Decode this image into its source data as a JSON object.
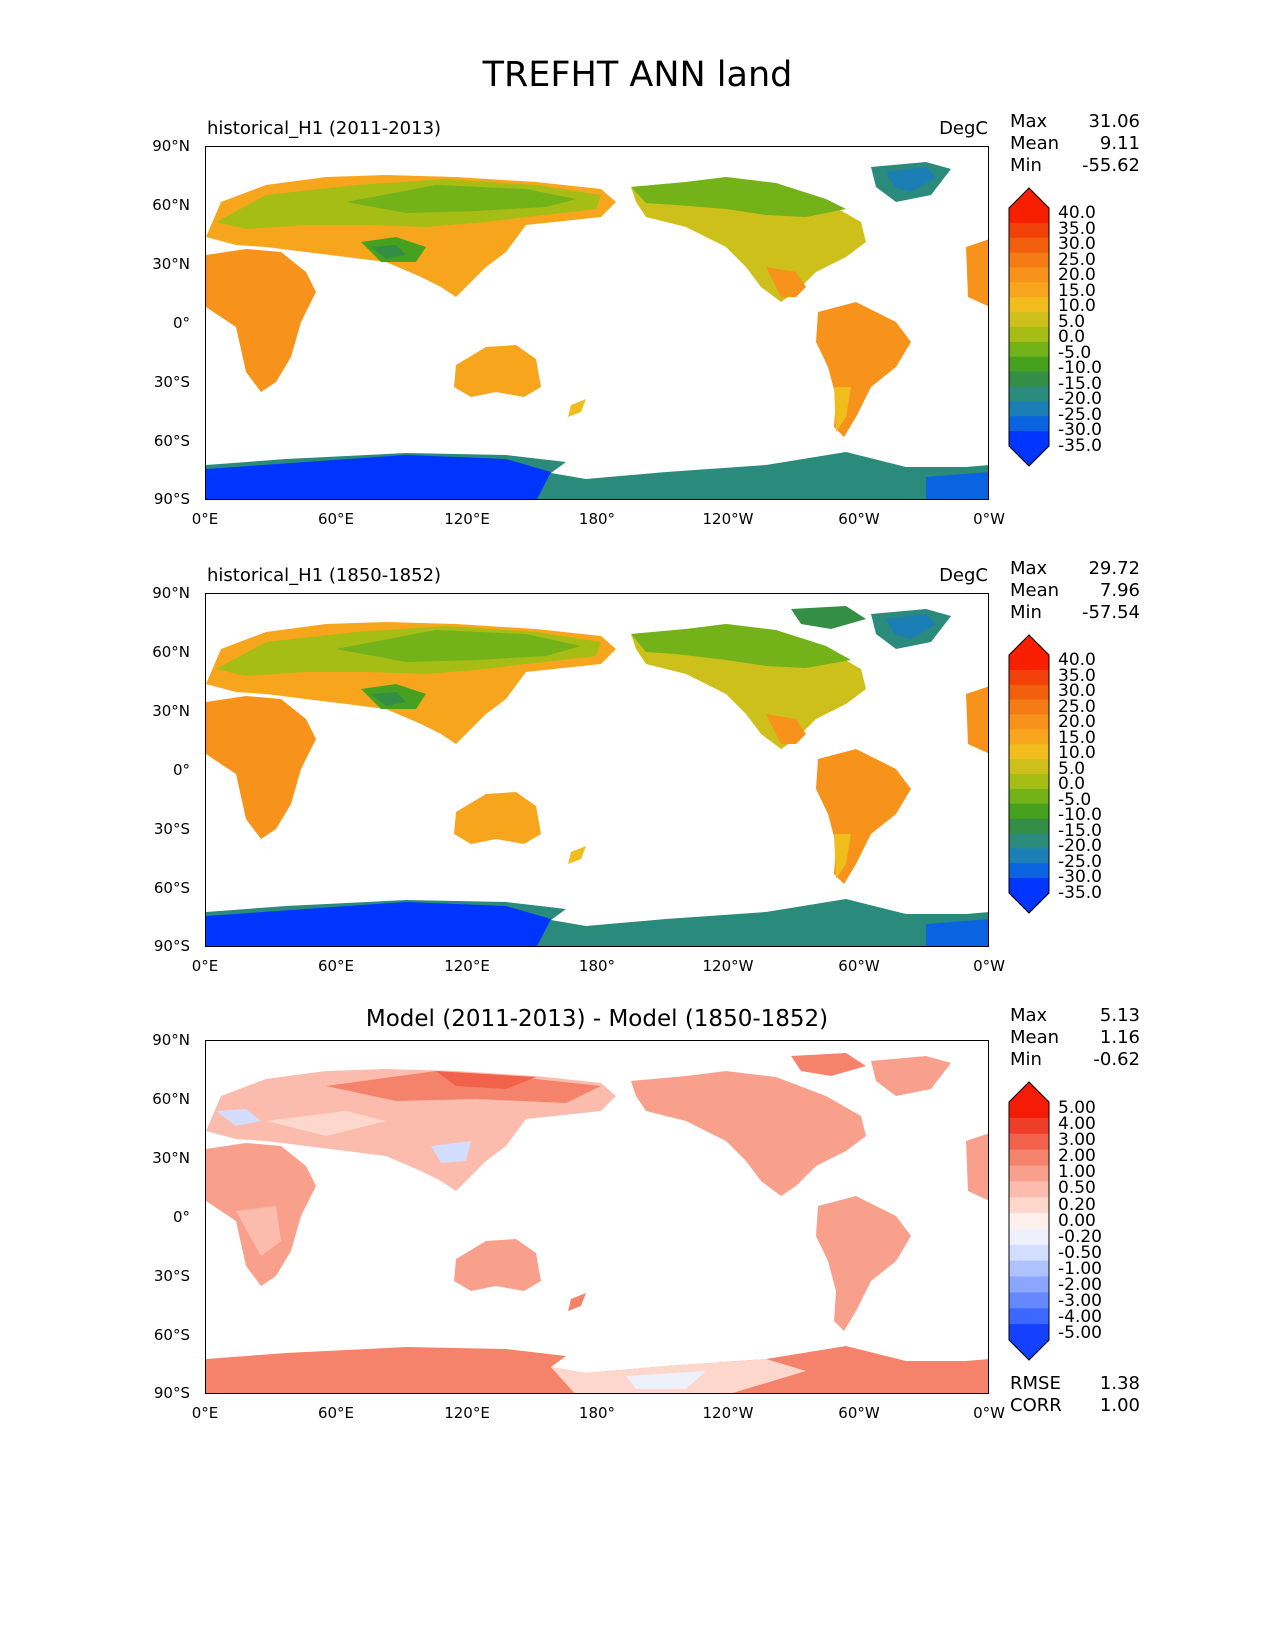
{
  "title": "TREFHT ANN land",
  "lat_ticks": [
    "90°N",
    "60°N",
    "30°N",
    "0°",
    "30°S",
    "60°S",
    "90°S"
  ],
  "lon_ticks": [
    "0°E",
    "60°E",
    "120°E",
    "180°",
    "120°W",
    "60°W",
    "0°W"
  ],
  "panels": [
    {
      "label": "historical_H1 (2011-2013)",
      "units": "DegC",
      "stats": {
        "max_label": "Max",
        "max": "31.06",
        "mean_label": "Mean",
        "mean": "9.11",
        "min_label": "Min",
        "min": "-55.62"
      },
      "colorbar_levels": [
        "40.0",
        "35.0",
        "30.0",
        "25.0",
        "20.0",
        "15.0",
        "10.0",
        "5.0",
        "0.0",
        "-5.0",
        "-10.0",
        "-15.0",
        "-20.0",
        "-25.0",
        "-30.0",
        "-35.0"
      ]
    },
    {
      "label": "historical_H1 (1850-1852)",
      "units": "DegC",
      "stats": {
        "max_label": "Max",
        "max": "29.72",
        "mean_label": "Mean",
        "mean": "7.96",
        "min_label": "Min",
        "min": "-57.54"
      },
      "colorbar_levels": [
        "40.0",
        "35.0",
        "30.0",
        "25.0",
        "20.0",
        "15.0",
        "10.0",
        "5.0",
        "0.0",
        "-5.0",
        "-10.0",
        "-15.0",
        "-20.0",
        "-25.0",
        "-30.0",
        "-35.0"
      ]
    },
    {
      "label": "Model (2011-2013) - Model (1850-1852)",
      "stats": {
        "max_label": "Max",
        "max": "5.13",
        "mean_label": "Mean",
        "mean": "1.16",
        "min_label": "Min",
        "min": "-0.62"
      },
      "colorbar_levels": [
        "5.00",
        "4.00",
        "3.00",
        "2.00",
        "1.00",
        "0.50",
        "0.20",
        "0.00",
        "-0.20",
        "-0.50",
        "-1.00",
        "-2.00",
        "-3.00",
        "-4.00",
        "-5.00"
      ],
      "rmse_label": "RMSE",
      "rmse": "1.38",
      "corr_label": "CORR",
      "corr": "1.00"
    }
  ],
  "colors": {
    "temp_scale": [
      "#0035ff",
      "#0a63e0",
      "#1b7fb5",
      "#2a8a7c",
      "#348e45",
      "#46a21e",
      "#74b219",
      "#a6bd16",
      "#cdc01a",
      "#f0bd1c",
      "#f7a51c",
      "#f7931a",
      "#f57c14",
      "#f2600e",
      "#f14108",
      "#f81e00"
    ],
    "diff_scale": [
      "#1440ff",
      "#3d68ff",
      "#6588ff",
      "#8aa6ff",
      "#aec2ff",
      "#d2ddff",
      "#eef0fb",
      "#fdf0ec",
      "#fdd7cc",
      "#fcbcad",
      "#f9a08c",
      "#f5826b",
      "#f1614b",
      "#ee3e2a",
      "#f51c07"
    ]
  }
}
